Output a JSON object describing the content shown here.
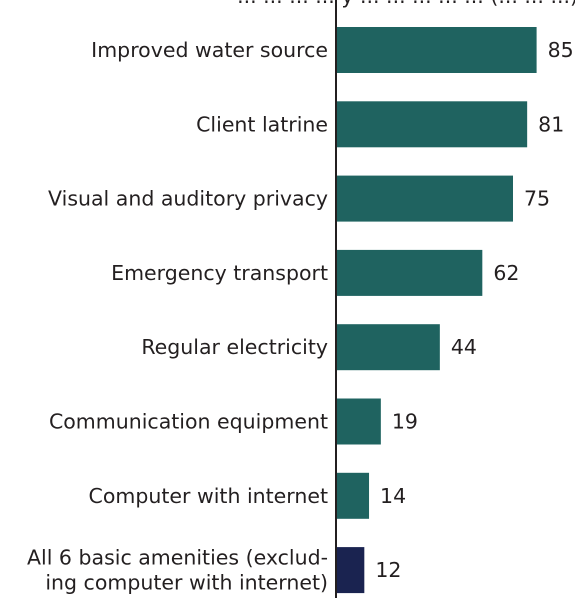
{
  "chart_data": {
    "type": "bar",
    "orientation": "horizontal",
    "title": "... ... ... ... y ... ... ... ... ... (... ... ...)",
    "categories": [
      [
        "Improved water source"
      ],
      [
        "Client latrine"
      ],
      [
        "Visual and auditory privacy"
      ],
      [
        "Emergency transport"
      ],
      [
        "Regular electricity"
      ],
      [
        "Communication equipment"
      ],
      [
        "Computer with internet"
      ],
      [
        "All 6 basic amenities (exclud-",
        "ing computer with internet)"
      ]
    ],
    "values": [
      85,
      81,
      75,
      62,
      44,
      19,
      14,
      12
    ],
    "value_labels": [
      "85",
      "81",
      "75",
      "62",
      "44",
      "19",
      "14",
      "12"
    ],
    "xlim": [
      0,
      100
    ],
    "bar_colors": [
      "#1f6360",
      "#1f6360",
      "#1f6360",
      "#1f6360",
      "#1f6360",
      "#1f6360",
      "#1f6360",
      "#1a2350"
    ],
    "axis_color": "#231f20",
    "grid": false,
    "legend": "none"
  }
}
